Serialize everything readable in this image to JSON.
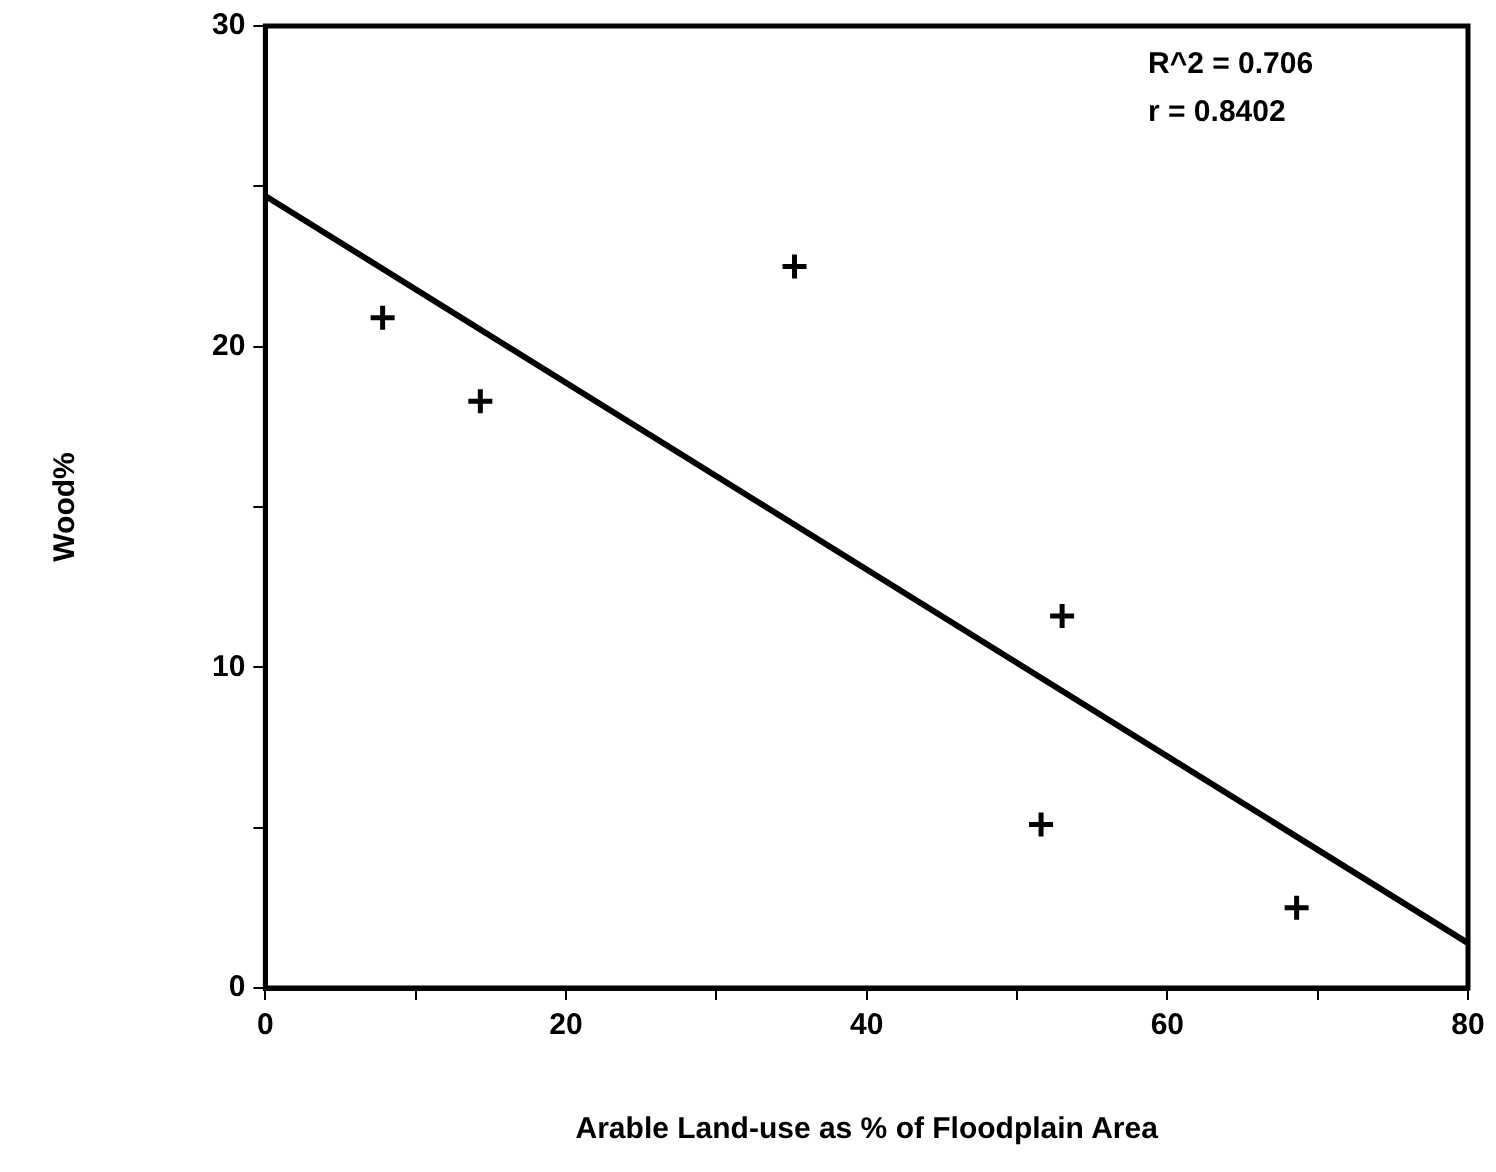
{
  "chart_data": {
    "type": "scatter",
    "xlabel": "Arable Land-use as % of Floodplain Area",
    "ylabel": "Wood%",
    "series": [
      {
        "marker": "cross",
        "color": "#000000",
        "x": [
          7.8,
          14.3,
          35.2,
          53.0,
          51.6,
          68.6
        ],
        "values": [
          20.9,
          18.3,
          22.5,
          11.6,
          5.1,
          2.5
        ]
      },
      {
        "type": "line",
        "marker": "none",
        "color": "#000000",
        "x": [
          0,
          80
        ],
        "values": [
          24.7,
          1.4
        ]
      }
    ],
    "annotations": [
      "R^2 = 0.706",
      "r = 0.8402"
    ],
    "xlim": [
      0,
      80
    ],
    "xticks": [
      0,
      {
        "value": 10,
        "label": null
      },
      20,
      {
        "value": 30,
        "label": null
      },
      40,
      {
        "value": 50,
        "label": null
      },
      60,
      {
        "value": 70,
        "label": null
      },
      80
    ],
    "ylim": [
      0,
      30
    ],
    "yticks": [
      0,
      {
        "value": 5,
        "label": null
      },
      10,
      {
        "value": 15,
        "label": null
      },
      20,
      {
        "value": 25,
        "label": null
      },
      30
    ],
    "grid": false,
    "legend": false
  }
}
